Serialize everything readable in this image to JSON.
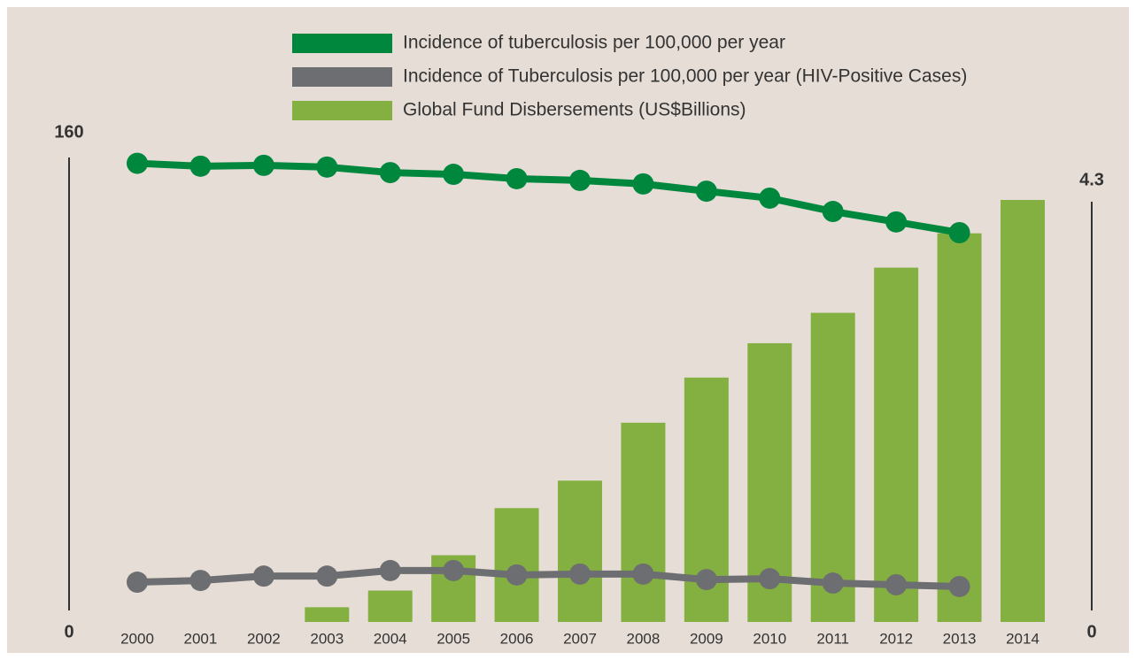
{
  "chart_data": {
    "type": "combo",
    "categories": [
      "2000",
      "2001",
      "2002",
      "2003",
      "2004",
      "2005",
      "2006",
      "2007",
      "2008",
      "2009",
      "2010",
      "2011",
      "2012",
      "2013",
      "2014"
    ],
    "series": [
      {
        "name": "Incidence of tuberculosis per 100,000 per year",
        "color": "#00873e",
        "type": "line",
        "axis": "y",
        "values": [
          158,
          157,
          157.3,
          156.7,
          154.8,
          154.2,
          152.7,
          152.1,
          150.9,
          148.4,
          146,
          141.4,
          137.8,
          134.1,
          null
        ]
      },
      {
        "name": "Incidence of Tuberculosis per 100,000 per year (HIV-Positive Cases)",
        "color": "#6d6e71",
        "type": "line",
        "axis": "y",
        "values": [
          13.7,
          14.3,
          15.8,
          15.8,
          17.7,
          17.7,
          16.2,
          16.5,
          16.5,
          14.6,
          14.9,
          13.4,
          12.8,
          12.2,
          null
        ]
      },
      {
        "name": "Global Fund Disbersements (US$Billions)",
        "color": "#84b041",
        "type": "bar",
        "axis": "y2",
        "values": [
          null,
          null,
          null,
          0.15,
          0.32,
          0.68,
          1.16,
          1.44,
          2.03,
          2.49,
          2.84,
          3.15,
          3.61,
          3.96,
          4.3
        ]
      }
    ],
    "ylim": [
      0,
      160
    ],
    "yticks": [
      0,
      160
    ],
    "y2lim": [
      0,
      4.3
    ],
    "y2ticks": [
      0,
      4.3
    ],
    "grid": false
  }
}
